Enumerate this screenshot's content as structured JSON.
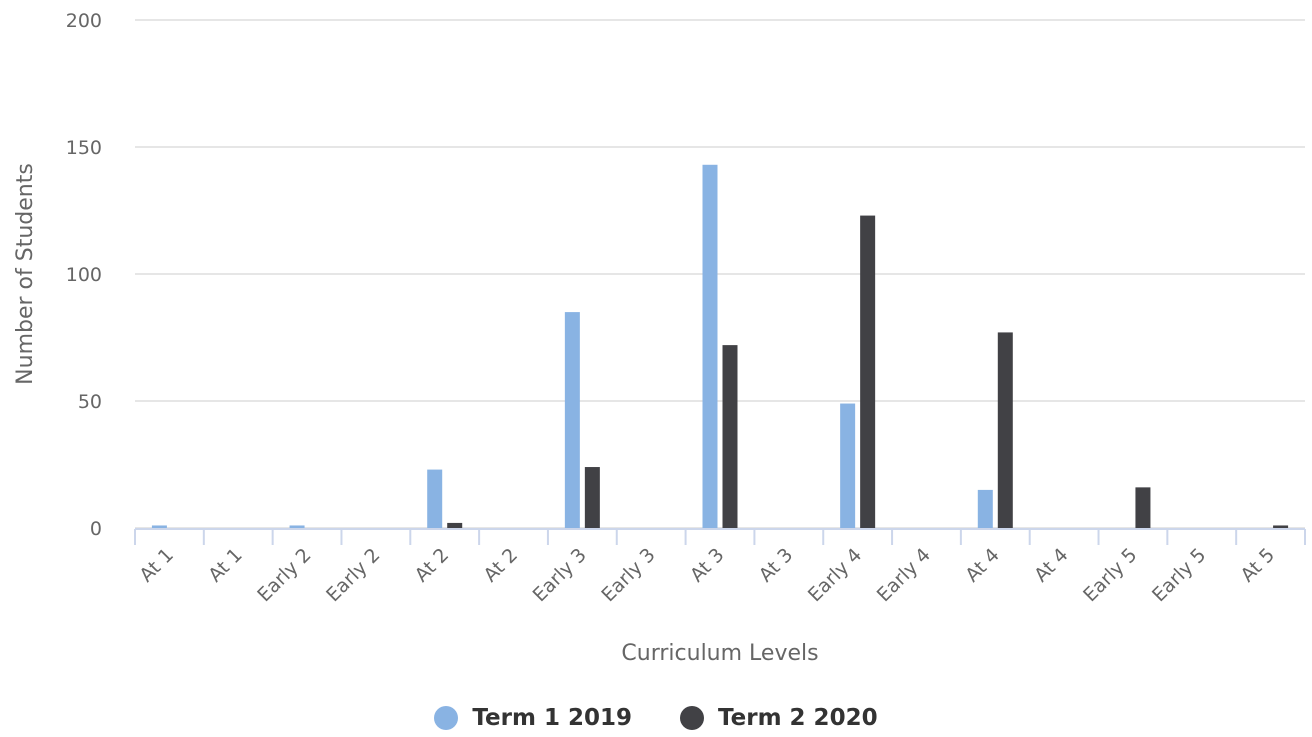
{
  "chart_data": {
    "type": "bar",
    "xlabel": "Curriculum Levels",
    "ylabel": "Number of Students",
    "ylim": [
      0,
      200
    ],
    "yticks": [
      0,
      50,
      100,
      150,
      200
    ],
    "grid": true,
    "legend_position": "bottom-center",
    "categories": [
      "At 1",
      "At 1",
      "Early 2",
      "Early 2",
      "At 2",
      "At 2",
      "Early 3",
      "Early 3",
      "At 3",
      "At 3",
      "Early 4",
      "Early 4",
      "At 4",
      "At 4",
      "Early 5",
      "Early 5",
      "At 5"
    ],
    "series": [
      {
        "name": "Term 1 2019",
        "color": "#89b3e3",
        "values": [
          1,
          0,
          1,
          0,
          23,
          0,
          85,
          0,
          143,
          0,
          49,
          0,
          15,
          0,
          0,
          0,
          0
        ]
      },
      {
        "name": "Term 2 2020",
        "color": "#414145",
        "values": [
          0,
          0,
          0,
          0,
          2,
          0,
          24,
          0,
          72,
          0,
          123,
          0,
          77,
          0,
          16,
          0,
          1
        ]
      }
    ]
  }
}
